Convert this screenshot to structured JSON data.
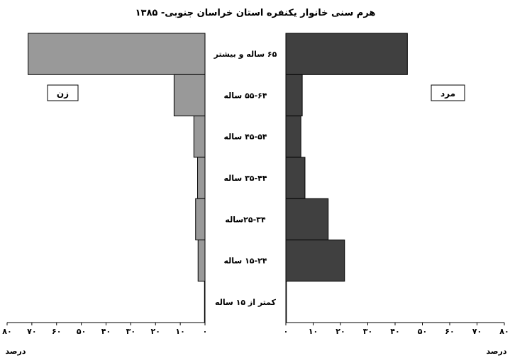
{
  "chart_data": {
    "type": "bar",
    "orientation": "horizontal",
    "subtype": "population-pyramid",
    "title": "هرم سنی خانوار یکنفره استان خراسان جنوبی- ۱۳۸۵",
    "categories": [
      "۶۵ ساله و بیشتر",
      "۵۵-۶۴ ساله",
      "۴۵-۵۴ ساله",
      "۳۵-۴۴  ساله",
      "۲۵-۳۴ساله",
      "۱۵-۲۴ ساله",
      "کمتر از ۱۵ ساله"
    ],
    "series": [
      {
        "name": "زن",
        "color": "#999999",
        "values": [
          71.5,
          12.5,
          4.5,
          3.0,
          3.8,
          2.8,
          0.2
        ]
      },
      {
        "name": "مرد",
        "color": "#404040",
        "values": [
          44.5,
          6.0,
          5.5,
          7.0,
          15.5,
          21.5,
          0.2
        ]
      }
    ],
    "women_axis": {
      "xlim": [
        0,
        80
      ],
      "direction": "right-to-left",
      "ticks": [
        0,
        10,
        20,
        30,
        40,
        50,
        60,
        70,
        80
      ],
      "tick_labels": [
        "۰",
        "۱۰",
        "۲۰",
        "۳۰",
        "۴۰",
        "۵۰",
        "۶۰",
        "۷۰",
        "۸۰"
      ],
      "xlabel": "درصد"
    },
    "men_axis": {
      "xlim": [
        0,
        80
      ],
      "direction": "left-to-right",
      "ticks": [
        0,
        10,
        20,
        30,
        40,
        50,
        60,
        70,
        80
      ],
      "tick_labels": [
        "۰",
        "۱۰",
        "۲۰",
        "۳۰",
        "۴۰",
        "۵۰",
        "۶۰",
        "۷۰",
        "۸۰"
      ],
      "xlabel": "درصد"
    },
    "grid": false,
    "legend": "inside boxed labels"
  }
}
